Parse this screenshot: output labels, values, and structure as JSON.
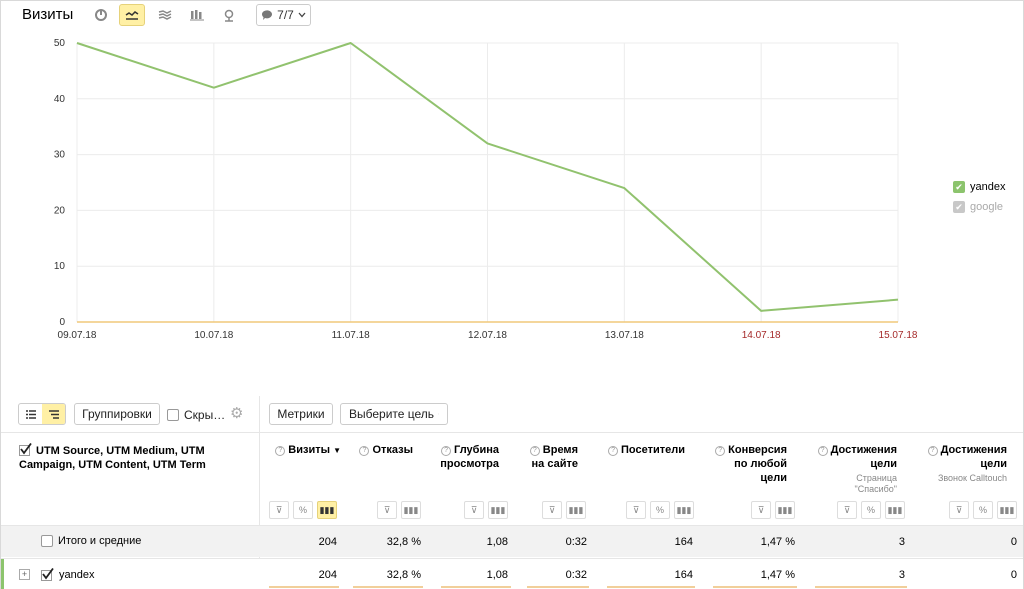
{
  "header": {
    "title": "Визиты",
    "annotation_label": "7/7"
  },
  "chart_data": {
    "type": "line",
    "categories": [
      "09.07.18",
      "10.07.18",
      "11.07.18",
      "12.07.18",
      "13.07.18",
      "14.07.18",
      "15.07.18"
    ],
    "weekend_categories": [
      "14.07.18",
      "15.07.18"
    ],
    "series": [
      {
        "name": "yandex",
        "values": [
          50,
          42,
          50,
          32,
          24,
          2,
          4
        ],
        "color": "#91c26e",
        "visible": true
      },
      {
        "name": "google",
        "values": [
          0,
          0,
          0,
          0,
          0,
          0,
          0
        ],
        "color": "#f0c87a",
        "visible": false
      }
    ],
    "yticks": [
      0,
      10,
      20,
      30,
      40,
      50
    ],
    "ylim": [
      0,
      50
    ],
    "grid": true,
    "legend_position": "right"
  },
  "legend": {
    "items": [
      {
        "label": "yandex",
        "color": "#8cc46d",
        "on": true
      },
      {
        "label": "google",
        "color": "#c8c8c8",
        "on": false
      }
    ]
  },
  "toolbar": {
    "groupings_label": "Группировки",
    "hide_label": "Скры…",
    "metrics_label": "Метрики",
    "goal_select_label": "Выберите цель"
  },
  "table": {
    "dimension_header": "UTM Source, UTM Medium, UTM Campaign, UTM Content, UTM Term",
    "columns": [
      {
        "label": "Визиты",
        "sort": "▼"
      },
      {
        "label": "Отказы"
      },
      {
        "label": "Глубина просмотра"
      },
      {
        "label": "Время на сайте"
      },
      {
        "label": "Посетители"
      },
      {
        "label": "Конверсия по любой цели"
      },
      {
        "label": "Достижения цели",
        "sub": "Страница \"Спасибо\""
      },
      {
        "label": "Достижения цели",
        "sub": "Звонок Calltouch"
      }
    ],
    "total_row": {
      "label": "Итого и средние",
      "values": [
        "204",
        "32,8 %",
        "1,08",
        "0:32",
        "164",
        "1,47 %",
        "3",
        "0"
      ]
    },
    "rows": [
      {
        "label": "yandex",
        "values": [
          "204",
          "32,8 %",
          "1,08",
          "0:32",
          "164",
          "1,47 %",
          "3",
          "0"
        ]
      }
    ]
  }
}
